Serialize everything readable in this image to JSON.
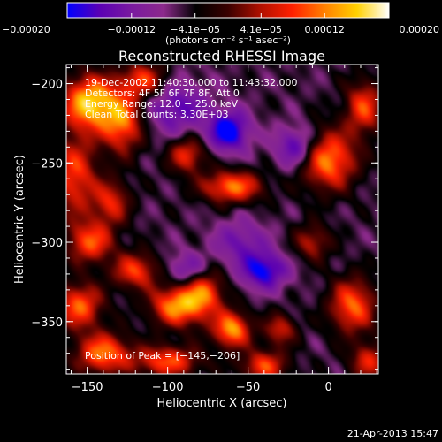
{
  "chart_data": {
    "type": "heatmap",
    "title": "Reconstructed RHESSI Image",
    "xlabel": "Heliocentric X (arcsec)",
    "ylabel": "Heliocentric Y (arcsec)",
    "xlim": [
      -163,
      31
    ],
    "ylim": [
      -383,
      -188
    ],
    "xticks": [
      {
        "value": -150,
        "label": "−150"
      },
      {
        "value": -100,
        "label": "−100"
      },
      {
        "value": -50,
        "label": "−50"
      },
      {
        "value": 0,
        "label": "0"
      }
    ],
    "yticks": [
      {
        "value": -200,
        "label": "−200"
      },
      {
        "value": -250,
        "label": "−250"
      },
      {
        "value": -300,
        "label": "−300"
      },
      {
        "value": -350,
        "label": "−350"
      }
    ],
    "colorbar": {
      "range": [
        -0.0002,
        0.0002
      ],
      "ticks": [
        {
          "value": -0.0002,
          "label": "−0.00020"
        },
        {
          "value": -0.00012,
          "label": "−0.00012"
        },
        {
          "value": -4.1e-05,
          "label": "−4.1e−05"
        },
        {
          "value": 4.1e-05,
          "label": "4.1e−05"
        },
        {
          "value": 0.00012,
          "label": "0.00012"
        },
        {
          "value": 0.0002,
          "label": "0.00020"
        }
      ],
      "unit_label": "(photons cm⁻² s⁻¹ asec⁻²)",
      "stops": [
        "#0000ff",
        "#5a00b4",
        "#7a1aa0",
        "#8c2a8c",
        "#000000",
        "#3a0000",
        "#b01000",
        "#ff2000",
        "#ff8000",
        "#ffd000",
        "#ffffff"
      ]
    },
    "info_lines": [
      "19-Dec-2002 11:40:30.000 to 11:43:32.000",
      "Detectors: 4F 5F 6F 7F 8F, Att 0",
      "Energy Range: 12.0 − 25.0 keV",
      "Clean     Total counts: 3.30E+03"
    ],
    "peak_label": "Position of Peak = [−145,−206]",
    "peak": {
      "x": -145,
      "y": -206
    },
    "blobs": [
      {
        "x": -148,
        "y": -212,
        "sx": 12,
        "sy": 12,
        "a": 1.1
      },
      {
        "x": -128,
        "y": -225,
        "sx": 9,
        "sy": 13,
        "a": 0.8
      },
      {
        "x": -158,
        "y": -258,
        "sx": 10,
        "sy": 18,
        "a": 0.7
      },
      {
        "x": -135,
        "y": -275,
        "sx": 8,
        "sy": 10,
        "a": 0.6
      },
      {
        "x": -148,
        "y": -300,
        "sx": 10,
        "sy": 9,
        "a": 0.75
      },
      {
        "x": -120,
        "y": -318,
        "sx": 10,
        "sy": 8,
        "a": 0.7
      },
      {
        "x": -155,
        "y": -340,
        "sx": 10,
        "sy": 10,
        "a": 0.8
      },
      {
        "x": -140,
        "y": -370,
        "sx": 12,
        "sy": 9,
        "a": 0.85
      },
      {
        "x": -95,
        "y": -340,
        "sx": 11,
        "sy": 9,
        "a": 0.9
      },
      {
        "x": -78,
        "y": -330,
        "sx": 9,
        "sy": 12,
        "a": 0.85
      },
      {
        "x": -60,
        "y": -355,
        "sx": 8,
        "sy": 8,
        "a": 0.95
      },
      {
        "x": -100,
        "y": -375,
        "sx": 14,
        "sy": 7,
        "a": 0.75
      },
      {
        "x": -40,
        "y": -378,
        "sx": 10,
        "sy": 7,
        "a": 0.7
      },
      {
        "x": -30,
        "y": -355,
        "sx": 7,
        "sy": 7,
        "a": 0.55
      },
      {
        "x": -60,
        "y": -265,
        "sx": 13,
        "sy": 7,
        "a": 0.85
      },
      {
        "x": -88,
        "y": -245,
        "sx": 8,
        "sy": 8,
        "a": 0.65
      },
      {
        "x": 0,
        "y": -248,
        "sx": 12,
        "sy": 13,
        "a": 0.9
      },
      {
        "x": 22,
        "y": -215,
        "sx": 8,
        "sy": 12,
        "a": 0.7
      },
      {
        "x": 15,
        "y": -340,
        "sx": 10,
        "sy": 12,
        "a": 0.8
      },
      {
        "x": 25,
        "y": -375,
        "sx": 8,
        "sy": 8,
        "a": 0.6
      },
      {
        "x": -10,
        "y": -300,
        "sx": 8,
        "sy": 8,
        "a": 0.5
      },
      {
        "x": -115,
        "y": -198,
        "sx": 10,
        "sy": 8,
        "a": 0.7
      },
      {
        "x": -62,
        "y": -230,
        "sx": 9,
        "sy": 9,
        "a": -0.8
      },
      {
        "x": -85,
        "y": -318,
        "sx": 10,
        "sy": 8,
        "a": -0.6
      },
      {
        "x": -40,
        "y": -318,
        "sx": 10,
        "sy": 8,
        "a": -0.7
      },
      {
        "x": -20,
        "y": -240,
        "sx": 9,
        "sy": 9,
        "a": -0.6
      },
      {
        "x": -95,
        "y": -215,
        "sx": 14,
        "sy": 12,
        "a": -0.5
      },
      {
        "x": -55,
        "y": -300,
        "sx": 12,
        "sy": 10,
        "a": -0.4
      }
    ]
  },
  "footer": {
    "timestamp": "21-Apr-2013 15:47"
  }
}
